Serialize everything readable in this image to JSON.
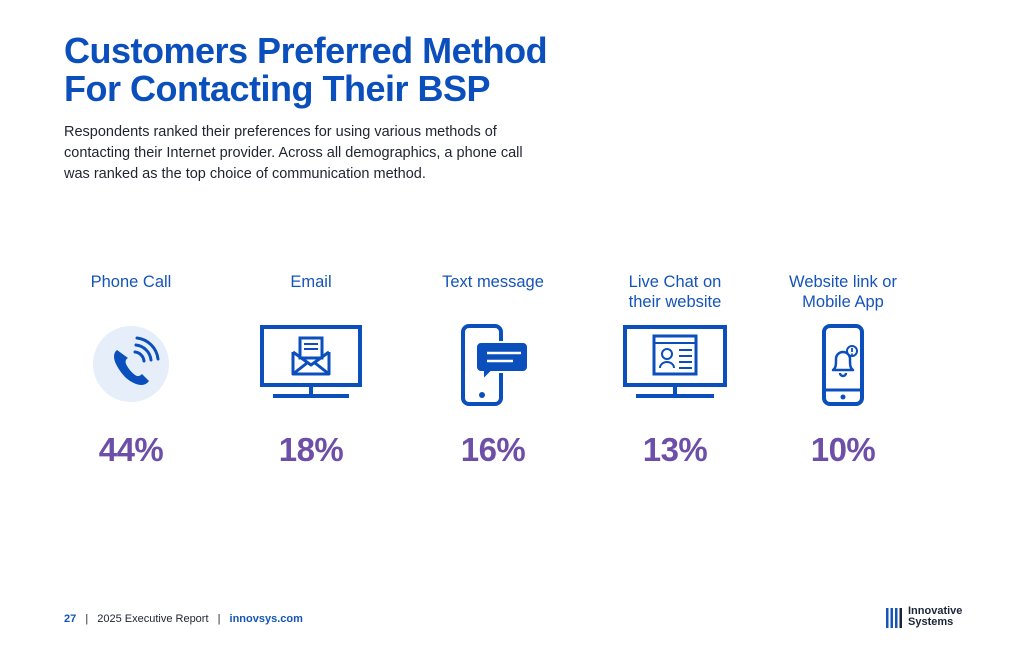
{
  "title": [
    "Customers Preferred Method",
    "For Contacting Their BSP"
  ],
  "intro": "Respondents ranked their preferences for using various methods of contacting their Internet provider. Across all demographics, a phone call was ranked as the top choice of communication method.",
  "methods": [
    {
      "label": [
        "Phone Call"
      ],
      "value": "44%",
      "icon": "phone-icon"
    },
    {
      "label": [
        "Email"
      ],
      "value": "18%",
      "icon": "monitor-email-icon"
    },
    {
      "label": [
        "Text message"
      ],
      "value": "16%",
      "icon": "mobile-text-message-icon"
    },
    {
      "label": [
        "Live Chat on",
        "their website"
      ],
      "value": "13%",
      "icon": "monitor-live-chat-icon"
    },
    {
      "label": [
        "Website link or",
        "Mobile App"
      ],
      "value": "10%",
      "icon": "mobile-notification-bell-icon"
    }
  ],
  "footer": {
    "page": "27",
    "report": "2025 Executive Report",
    "site": "innovsys.com",
    "separator": "|"
  },
  "logo": {
    "line1": "Innovative",
    "line2": "Systems"
  },
  "colors": {
    "primary_blue": "#0b4fbd",
    "percent_purple": "#6e4fa8",
    "icon_blue": "#1554b8",
    "icon_bg": "#e6eef9"
  }
}
